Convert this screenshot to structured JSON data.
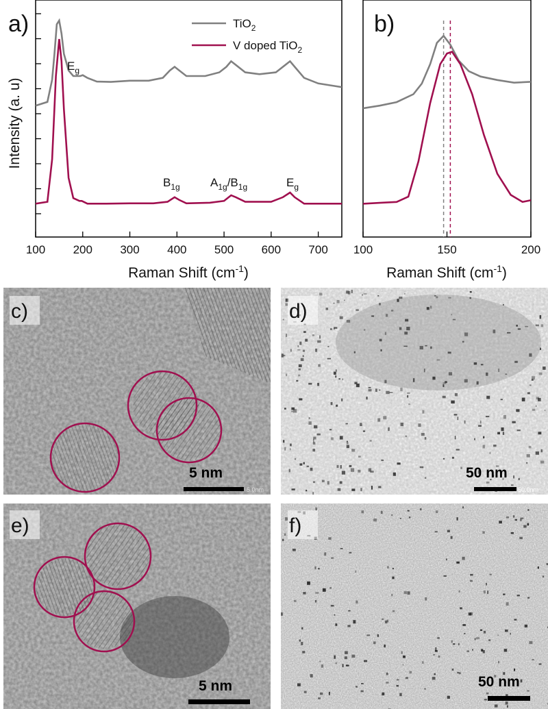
{
  "colors": {
    "tio2": "#808080",
    "vdoped": "#a0104f",
    "frame": "#000000"
  },
  "chart_data": [
    {
      "type": "line",
      "panel_label": "a)",
      "xlabel": "Raman Shift (cm",
      "xlabel_sup": "-1",
      "xlabel_end": ")",
      "ylabel": "Intensity (a. u)",
      "xlim": [
        100,
        750
      ],
      "xticks": [
        "100",
        "200",
        "300",
        "400",
        "500",
        "600",
        "700"
      ],
      "yticks_labeled": false,
      "legend": {
        "placement": "top-right"
      },
      "series": [
        {
          "name": "TiO",
          "name_sub": "2",
          "points": [
            [
              100,
              0.54
            ],
            [
              125,
              0.56
            ],
            [
              135,
              0.68
            ],
            [
              140,
              0.82
            ],
            [
              145,
              0.98
            ],
            [
              150,
              1.0
            ],
            [
              155,
              0.93
            ],
            [
              160,
              0.82
            ],
            [
              170,
              0.73
            ],
            [
              180,
              0.7
            ],
            [
              195,
              0.7
            ],
            [
              200,
              0.705
            ],
            [
              210,
              0.69
            ],
            [
              230,
              0.67
            ],
            [
              260,
              0.668
            ],
            [
              300,
              0.675
            ],
            [
              340,
              0.675
            ],
            [
              370,
              0.69
            ],
            [
              385,
              0.73
            ],
            [
              395,
              0.75
            ],
            [
              405,
              0.73
            ],
            [
              420,
              0.7
            ],
            [
              460,
              0.7
            ],
            [
              490,
              0.72
            ],
            [
              505,
              0.75
            ],
            [
              515,
              0.78
            ],
            [
              525,
              0.76
            ],
            [
              545,
              0.72
            ],
            [
              575,
              0.71
            ],
            [
              610,
              0.72
            ],
            [
              630,
              0.76
            ],
            [
              640,
              0.78
            ],
            [
              650,
              0.75
            ],
            [
              670,
              0.69
            ],
            [
              700,
              0.66
            ],
            [
              725,
              0.65
            ],
            [
              750,
              0.64
            ]
          ]
        },
        {
          "name": "V doped TiO",
          "name_sub": "2",
          "points": [
            [
              100,
              0.01
            ],
            [
              125,
              0.02
            ],
            [
              135,
              0.25
            ],
            [
              143,
              0.7
            ],
            [
              150,
              0.9
            ],
            [
              155,
              0.78
            ],
            [
              160,
              0.52
            ],
            [
              170,
              0.15
            ],
            [
              180,
              0.04
            ],
            [
              193,
              0.025
            ],
            [
              198,
              0.025
            ],
            [
              210,
              0.01
            ],
            [
              250,
              0.01
            ],
            [
              300,
              0.012
            ],
            [
              350,
              0.012
            ],
            [
              380,
              0.02
            ],
            [
              395,
              0.045
            ],
            [
              405,
              0.03
            ],
            [
              420,
              0.012
            ],
            [
              470,
              0.015
            ],
            [
              500,
              0.025
            ],
            [
              515,
              0.055
            ],
            [
              525,
              0.045
            ],
            [
              545,
              0.02
            ],
            [
              600,
              0.02
            ],
            [
              625,
              0.045
            ],
            [
              640,
              0.07
            ],
            [
              650,
              0.045
            ],
            [
              670,
              0.01
            ],
            [
              700,
              0.01
            ],
            [
              750,
              0.01
            ]
          ]
        }
      ],
      "annotations": [
        {
          "text": "E",
          "sub": "g",
          "x": 150
        },
        {
          "text": "B",
          "sub": "1g",
          "x": 395
        },
        {
          "text": "A",
          "sub": "1g",
          "mid": "/B",
          "sub2": "1g",
          "x": 515
        },
        {
          "text": "E",
          "sub": "g",
          "x": 640
        }
      ]
    },
    {
      "type": "line",
      "panel_label": "b)",
      "xlabel": "Raman Shift (cm",
      "xlabel_sup": "-1",
      "xlabel_end": ")",
      "xlim": [
        100,
        200
      ],
      "xticks": [
        "100",
        "150",
        "200"
      ],
      "vlines": [
        148,
        152
      ],
      "series": [
        {
          "name": "TiO2",
          "points": [
            [
              100,
              0.55
            ],
            [
              110,
              0.565
            ],
            [
              120,
              0.585
            ],
            [
              130,
              0.63
            ],
            [
              135,
              0.69
            ],
            [
              140,
              0.8
            ],
            [
              144,
              0.92
            ],
            [
              148,
              0.96
            ],
            [
              152,
              0.91
            ],
            [
              157,
              0.82
            ],
            [
              163,
              0.76
            ],
            [
              170,
              0.73
            ],
            [
              180,
              0.71
            ],
            [
              190,
              0.695
            ],
            [
              200,
              0.7
            ]
          ]
        },
        {
          "name": "V doped TiO2",
          "points": [
            [
              100,
              0.01
            ],
            [
              110,
              0.015
            ],
            [
              120,
              0.02
            ],
            [
              127,
              0.05
            ],
            [
              133,
              0.25
            ],
            [
              140,
              0.58
            ],
            [
              146,
              0.8
            ],
            [
              150,
              0.86
            ],
            [
              153,
              0.87
            ],
            [
              158,
              0.8
            ],
            [
              165,
              0.63
            ],
            [
              172,
              0.4
            ],
            [
              180,
              0.18
            ],
            [
              188,
              0.06
            ],
            [
              195,
              0.02
            ],
            [
              200,
              0.03
            ]
          ]
        }
      ]
    }
  ],
  "micrographs": [
    {
      "label": "c)",
      "scale_bar": "5 nm",
      "bar_caption": "5.0nm"
    },
    {
      "label": "d)",
      "scale_bar": "50 nm",
      "bar_caption": "50.0nm"
    },
    {
      "label": "e)",
      "scale_bar": "5 nm"
    },
    {
      "label": "f)",
      "scale_bar": "50 nm"
    }
  ]
}
